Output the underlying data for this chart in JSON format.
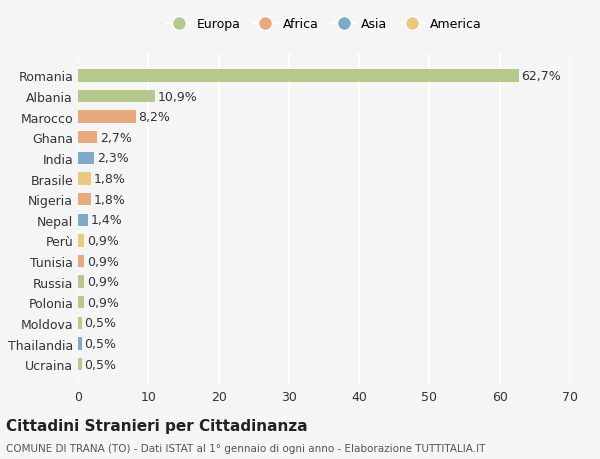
{
  "countries": [
    "Ucraina",
    "Thailandia",
    "Moldova",
    "Polonia",
    "Russia",
    "Tunisia",
    "Perù",
    "Nepal",
    "Nigeria",
    "Brasile",
    "India",
    "Ghana",
    "Marocco",
    "Albania",
    "Romania"
  ],
  "values": [
    0.5,
    0.5,
    0.5,
    0.9,
    0.9,
    0.9,
    0.9,
    1.4,
    1.8,
    1.8,
    2.3,
    2.7,
    8.2,
    10.9,
    62.7
  ],
  "labels": [
    "0,5%",
    "0,5%",
    "0,5%",
    "0,9%",
    "0,9%",
    "0,9%",
    "0,9%",
    "1,4%",
    "1,8%",
    "1,8%",
    "2,3%",
    "2,7%",
    "8,2%",
    "10,9%",
    "62,7%"
  ],
  "continents": [
    "Europa",
    "Asia",
    "Europa",
    "Europa",
    "Europa",
    "Africa",
    "America",
    "Asia",
    "Africa",
    "America",
    "Asia",
    "Africa",
    "Africa",
    "Europa",
    "Europa"
  ],
  "continent_colors": {
    "Europa": "#b5c98e",
    "Africa": "#e8a97e",
    "Asia": "#7eaac8",
    "America": "#e8c97e"
  },
  "legend_order": [
    "Europa",
    "Africa",
    "Asia",
    "America"
  ],
  "xlim": [
    0,
    70
  ],
  "xticks": [
    0,
    10,
    20,
    30,
    40,
    50,
    60,
    70
  ],
  "title": "Cittadini Stranieri per Cittadinanza",
  "subtitle": "COMUNE DI TRANA (TO) - Dati ISTAT al 1° gennaio di ogni anno - Elaborazione TUTTITALIA.IT",
  "background_color": "#f5f5f5",
  "grid_color": "#ffffff",
  "bar_height": 0.6,
  "label_fontsize": 9,
  "axis_fontsize": 9,
  "title_fontsize": 11
}
